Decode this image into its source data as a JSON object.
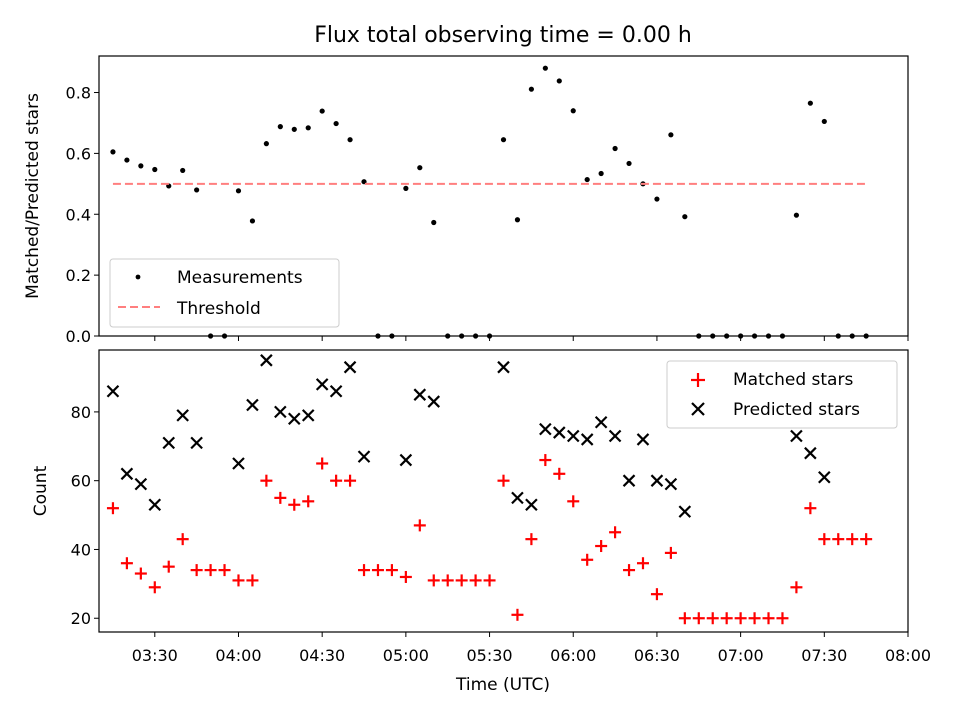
{
  "chart_data": [
    {
      "type": "scatter",
      "title": "Flux total observing time = 0.00 h",
      "xlabel": "",
      "ylabel": "Matched/Predicted stars",
      "xlim": [
        "03:10",
        "08:00"
      ],
      "ylim": [
        0,
        0.92
      ],
      "yticks": [
        0.0,
        0.2,
        0.4,
        0.6,
        0.8
      ],
      "ytick_labels": [
        "0.0",
        "0.2",
        "0.4",
        "0.6",
        "0.8"
      ],
      "grid": false,
      "legend_position": "lower-left",
      "series": [
        {
          "name": "Measurements",
          "kind": "scatter",
          "color": "#000000",
          "x": [
            "03:15",
            "03:20",
            "03:25",
            "03:30",
            "03:35",
            "03:40",
            "03:45",
            "03:50",
            "03:55",
            "04:00",
            "04:05",
            "04:10",
            "04:15",
            "04:20",
            "04:25",
            "04:30",
            "04:35",
            "04:40",
            "04:45",
            "04:50",
            "04:55",
            "05:00",
            "05:05",
            "05:10",
            "05:15",
            "05:20",
            "05:25",
            "05:30",
            "05:35",
            "05:40",
            "05:45",
            "05:50",
            "05:55",
            "06:00",
            "06:05",
            "06:10",
            "06:15",
            "06:20",
            "06:25",
            "06:30",
            "06:35",
            "06:40",
            "06:45",
            "06:50",
            "06:55",
            "07:00",
            "07:05",
            "07:10",
            "07:15",
            "07:20",
            "07:25",
            "07:30",
            "07:35",
            "07:40",
            "07:45"
          ],
          "y": [
            0.605,
            0.578,
            0.559,
            0.547,
            0.493,
            0.544,
            0.48,
            0.0,
            0.0,
            0.477,
            0.378,
            0.632,
            0.688,
            0.679,
            0.684,
            0.739,
            0.698,
            0.645,
            0.507,
            0.0,
            0.0,
            0.485,
            0.553,
            0.373,
            0.0,
            0.0,
            0.0,
            0.0,
            0.645,
            0.382,
            0.811,
            0.88,
            0.838,
            0.74,
            0.514,
            0.534,
            0.616,
            0.567,
            0.5,
            0.45,
            0.661,
            0.392,
            0.0,
            0.0,
            0.0,
            0.0,
            0.0,
            0.0,
            0.0,
            0.397,
            0.765,
            0.705,
            0.0,
            0.0,
            0.0
          ]
        },
        {
          "name": "Threshold",
          "kind": "line",
          "style": "dashed",
          "color": "#ff7f7f",
          "x": [
            "03:15",
            "07:45"
          ],
          "y": [
            0.5,
            0.5
          ]
        }
      ]
    },
    {
      "type": "scatter",
      "title": "",
      "xlabel": "Time (UTC)",
      "ylabel": "Count",
      "xlim": [
        "03:10",
        "08:00"
      ],
      "ylim": [
        16,
        98
      ],
      "yticks": [
        20,
        40,
        60,
        80
      ],
      "ytick_labels": [
        "20",
        "40",
        "60",
        "80"
      ],
      "xticks": [
        "03:30",
        "04:00",
        "04:30",
        "05:00",
        "05:30",
        "06:00",
        "06:30",
        "07:00",
        "07:30",
        "08:00"
      ],
      "xtick_labels": [
        "03:30",
        "04:00",
        "04:30",
        "05:00",
        "05:30",
        "06:00",
        "06:30",
        "07:00",
        "07:30",
        "08:00"
      ],
      "grid": false,
      "legend_position": "upper-right",
      "series": [
        {
          "name": "Matched stars",
          "marker": "+",
          "color": "#ff0000",
          "x": [
            "03:15",
            "03:20",
            "03:25",
            "03:30",
            "03:35",
            "03:40",
            "03:45",
            "03:50",
            "03:55",
            "04:00",
            "04:05",
            "04:10",
            "04:15",
            "04:20",
            "04:25",
            "04:30",
            "04:35",
            "04:40",
            "04:45",
            "04:50",
            "04:55",
            "05:00",
            "05:05",
            "05:10",
            "05:15",
            "05:20",
            "05:25",
            "05:30",
            "05:35",
            "05:40",
            "05:45",
            "05:50",
            "05:55",
            "06:00",
            "06:05",
            "06:10",
            "06:15",
            "06:20",
            "06:25",
            "06:30",
            "06:35",
            "06:40",
            "06:45",
            "06:50",
            "06:55",
            "07:00",
            "07:05",
            "07:10",
            "07:15",
            "07:20",
            "07:25",
            "07:30",
            "07:35",
            "07:40",
            "07:45"
          ],
          "y": [
            52,
            36,
            33,
            29,
            35,
            43,
            34,
            34,
            34,
            31,
            31,
            60,
            55,
            53,
            54,
            65,
            60,
            60,
            34,
            34,
            34,
            32,
            47,
            31,
            31,
            31,
            31,
            31,
            60,
            21,
            43,
            66,
            62,
            54,
            37,
            41,
            45,
            34,
            36,
            27,
            39,
            20,
            20,
            20,
            20,
            20,
            20,
            20,
            20,
            29,
            52,
            43,
            43,
            43,
            43
          ]
        },
        {
          "name": "Predicted stars",
          "marker": "x",
          "color": "#000000",
          "x": [
            "03:15",
            "03:20",
            "03:25",
            "03:30",
            "03:35",
            "03:40",
            "03:45",
            "04:00",
            "04:05",
            "04:10",
            "04:15",
            "04:20",
            "04:25",
            "04:30",
            "04:35",
            "04:40",
            "04:45",
            "05:00",
            "05:05",
            "05:10",
            "05:35",
            "05:40",
            "05:45",
            "05:50",
            "05:55",
            "06:00",
            "06:05",
            "06:10",
            "06:15",
            "06:20",
            "06:25",
            "06:30",
            "06:35",
            "06:40",
            "07:20",
            "07:25",
            "07:30"
          ],
          "y": [
            86,
            62,
            59,
            53,
            71,
            79,
            71,
            65,
            82,
            95,
            80,
            78,
            79,
            88,
            86,
            93,
            67,
            66,
            85,
            83,
            93,
            55,
            53,
            75,
            74,
            73,
            72,
            77,
            73,
            60,
            72,
            60,
            59,
            51,
            73,
            68,
            61
          ]
        }
      ]
    }
  ]
}
